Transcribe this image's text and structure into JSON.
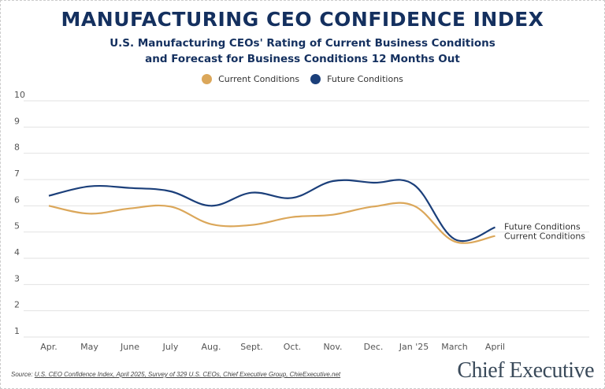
{
  "chart_data": {
    "type": "line",
    "title": "MANUFACTURING CEO CONFIDENCE INDEX",
    "subtitle_line1": "U.S. Manufacturing CEOs' Rating of Current Business Conditions",
    "subtitle_line2": "and Forecast for Business Conditions 12 Months Out",
    "categories": [
      "Apr.",
      "May",
      "June",
      "July",
      "Aug.",
      "Sept.",
      "Oct.",
      "Nov.",
      "Dec.",
      "Jan '25",
      "March",
      "April"
    ],
    "ylim": [
      1,
      10
    ],
    "yticks": [
      "1",
      "2",
      "3",
      "4",
      "5",
      "6",
      "7",
      "8",
      "9",
      "10"
    ],
    "grid": true,
    "legend_placement": "top-center",
    "series": [
      {
        "name": "Current Conditions",
        "color": "#dba75a",
        "end_label": "Current Conditions",
        "values": [
          6.0,
          5.7,
          5.9,
          5.97,
          5.3,
          5.27,
          5.57,
          5.66,
          5.97,
          6.0,
          4.64,
          4.85
        ]
      },
      {
        "name": "Future Conditions",
        "color": "#1b3f7a",
        "end_label": "Future Conditions",
        "values": [
          6.38,
          6.74,
          6.68,
          6.55,
          6.0,
          6.5,
          6.3,
          6.94,
          6.88,
          6.8,
          4.73,
          5.18
        ]
      }
    ]
  },
  "source_prefix": "Source: ",
  "source_text": "U.S. CEO Confidence Index, April 2025, Survey of 329 U.S. CEOs, Chief Executive Group, ChieExecutive.net",
  "logo_text": "Chief Executive"
}
